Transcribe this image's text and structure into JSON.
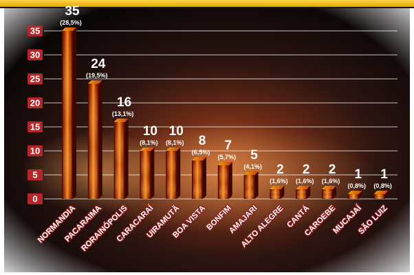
{
  "chart_data": {
    "type": "bar",
    "title": "",
    "xlabel": "",
    "ylabel": "",
    "ylim": [
      0,
      35
    ],
    "yticks": [
      0,
      5,
      10,
      15,
      20,
      25,
      30,
      35
    ],
    "grid": true,
    "legend": "none",
    "categories": [
      "NORMANDIA",
      "PACARAIMA",
      "RORAINÓPOLIS",
      "CARACARAÍ",
      "UIRAMUTÃ",
      "BOA VISTA",
      "BONFIM",
      "AMAJARI",
      "ALTO ALEGRE",
      "CANTÁ",
      "CAROEBE",
      "MUCAJAÍ",
      "SÃO LUIZ"
    ],
    "values": [
      35,
      24,
      16,
      10,
      10,
      8,
      7,
      5,
      2,
      2,
      2,
      1,
      1
    ],
    "percent_labels": [
      "(28,5%)",
      "(19,5%)",
      "(13,1%)",
      "(8,1%)",
      "(8,1%)",
      "(6,5%)",
      "(5,7%)",
      "(4,1%)",
      "(1,6%)",
      "(1,6%)",
      "(1,6%)",
      "(0,8%)",
      "(0,8%)"
    ],
    "colors": {
      "bar_front": "#c2410c",
      "bar_dark": "#3a0800",
      "bar_top": "#f59e0b",
      "tick_bg": "#b3262a",
      "frame": "#f4c20d"
    }
  }
}
